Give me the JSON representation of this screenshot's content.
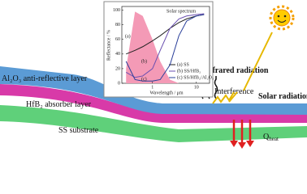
{
  "labels": {
    "top_layer": "Al₂O₃ anti-reflective layer",
    "absorber_layer": "HfB₂ absorber layer",
    "substrate": "SS substrate",
    "infrared": "Infrared radiation",
    "solar": "Solar radiation",
    "interference": "Interference",
    "q": "Q",
    "q_sub": "heat"
  },
  "chart_data": {
    "type": "line",
    "ylabel": "Reflectance / %",
    "xlabel": "Wavelength / μm",
    "log_x": true,
    "xlim": [
      0.2,
      20
    ],
    "ylim": [
      0,
      105
    ],
    "xticks": [
      1,
      10
    ],
    "yticks": [
      0,
      20,
      40,
      60,
      80,
      100
    ],
    "x": [
      0.25,
      0.4,
      0.6,
      1,
      1.5,
      2.5,
      4,
      6,
      10,
      15
    ],
    "area": {
      "name": "Solar spectrum",
      "color": "#f49ab6",
      "values": [
        20,
        98,
        92,
        60,
        30,
        5,
        0,
        0,
        0,
        0
      ]
    },
    "series": [
      {
        "name": "(a) SS",
        "color": "#222222",
        "values": [
          40,
          45,
          50,
          58,
          65,
          75,
          83,
          88,
          92,
          94
        ]
      },
      {
        "name": "(b) SS/HfB₂",
        "color": "#6a4fb0",
        "values": [
          15,
          8,
          10,
          20,
          45,
          75,
          88,
          92,
          94,
          95
        ]
      },
      {
        "name": "(c) SS/HfB₂/Al₂O₃",
        "color": "#2a3f9a",
        "values": [
          30,
          5,
          3,
          3,
          5,
          25,
          65,
          85,
          92,
          94
        ]
      }
    ],
    "annotations": [
      "(a)",
      "(b)",
      "(c)"
    ]
  }
}
